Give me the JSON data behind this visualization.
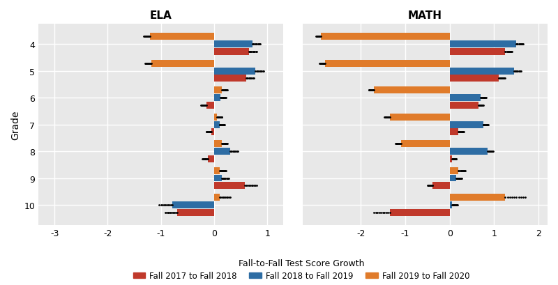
{
  "grades": [
    4,
    5,
    6,
    7,
    8,
    9,
    10
  ],
  "ela": {
    "orange": [
      -1.2,
      -1.18,
      0.15,
      0.05,
      0.15,
      0.1,
      0.1
    ],
    "blue": [
      0.72,
      0.78,
      0.12,
      0.1,
      0.3,
      0.15,
      -0.78
    ],
    "red": [
      0.65,
      0.6,
      -0.15,
      -0.05,
      -0.12,
      0.58,
      -0.7
    ]
  },
  "math": {
    "orange": [
      -2.9,
      -2.8,
      -1.7,
      -1.35,
      -1.1,
      0.2,
      1.25
    ],
    "blue": [
      1.5,
      1.45,
      0.7,
      0.75,
      0.85,
      0.15,
      0.05
    ],
    "red": [
      1.25,
      1.1,
      0.65,
      0.2,
      0.05,
      -0.38,
      -1.35
    ]
  },
  "ela_ci": {
    "orange": [
      0.12,
      0.12,
      0.1,
      0.1,
      0.1,
      0.12,
      0.2
    ],
    "blue": [
      0.15,
      0.15,
      0.1,
      0.1,
      0.15,
      0.12,
      0.25
    ],
    "red": [
      0.15,
      0.15,
      0.1,
      0.1,
      0.1,
      0.22,
      0.22
    ]
  },
  "math_ci": {
    "orange": [
      0.1,
      0.12,
      0.12,
      0.12,
      0.12,
      0.15,
      0.45
    ],
    "blue": [
      0.15,
      0.15,
      0.12,
      0.12,
      0.12,
      0.12,
      0.12
    ],
    "red": [
      0.15,
      0.15,
      0.1,
      0.12,
      0.1,
      0.12,
      0.35
    ]
  },
  "ela_xlim": [
    -3.3,
    1.3
  ],
  "math_xlim": [
    -3.3,
    2.2
  ],
  "ela_xticks": [
    -3,
    -2,
    -1,
    0,
    1
  ],
  "math_xticks": [
    -2,
    -1,
    0,
    1,
    2
  ],
  "colors": {
    "red": "#C0392B",
    "blue": "#2E6DA4",
    "orange": "#E07B2A"
  },
  "bar_height": 0.28,
  "title_ela": "ELA",
  "title_math": "MATH",
  "xlabel": "Fall-to-Fall Test Score Growth",
  "ylabel": "Grade",
  "bg_color": "#E8E8E8",
  "grid_color": "#FFFFFF",
  "legend": [
    "Fall 2017 to Fall 2018",
    "Fall 2018 to Fall 2019",
    "Fall 2019 to Fall 2020"
  ]
}
